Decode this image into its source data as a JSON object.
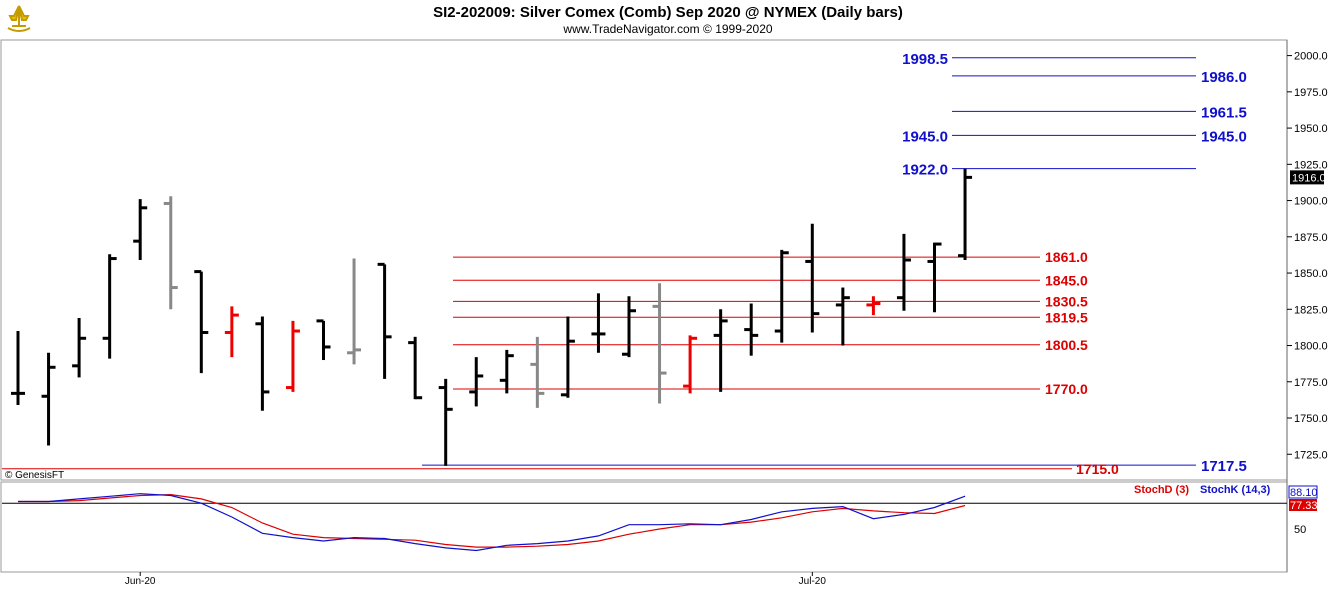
{
  "header": {
    "title": "SI2-202009:  Silver Comex (Comb) Sep 2020 @ NYMEX  (Daily bars)",
    "subtitle": "www.TradeNavigator.com © 1999-2020"
  },
  "colors": {
    "up_bar": "#000000",
    "neutral_bar": "#888888",
    "down_bar": "#ee0000",
    "blue_level": "#1010cc",
    "red_level": "#dd0000",
    "stoch_d": "#dd0000",
    "stoch_k": "#1010cc"
  },
  "chart_data": {
    "type": "ohlc",
    "price_axis": {
      "ylim": [
        1710,
        2008
      ],
      "ticks": [
        "2000.0",
        "1975.0",
        "1950.0",
        "1925.0",
        "1900.0",
        "1875.0",
        "1850.0",
        "1825.0",
        "1800.0",
        "1775.0",
        "1750.0",
        "1725.0"
      ],
      "tick_values": [
        2000,
        1975,
        1950,
        1925,
        1900,
        1875,
        1850,
        1825,
        1800,
        1775,
        1750,
        1725
      ]
    },
    "x_labels": [
      {
        "label": "Jun-20",
        "bar_index": 4
      },
      {
        "label": "Jul-20",
        "bar_index": 26
      }
    ],
    "current_price": {
      "label": "1916.0",
      "value": 1916.0
    },
    "bars": [
      {
        "o": 1767,
        "h": 1810,
        "l": 1759,
        "c": 1767,
        "color": "black"
      },
      {
        "o": 1765,
        "h": 1795,
        "l": 1731,
        "c": 1785,
        "color": "black"
      },
      {
        "o": 1786,
        "h": 1819,
        "l": 1778,
        "c": 1805,
        "color": "black"
      },
      {
        "o": 1805,
        "h": 1863,
        "l": 1791,
        "c": 1860,
        "color": "black"
      },
      {
        "o": 1872,
        "h": 1901,
        "l": 1859,
        "c": 1895,
        "color": "black"
      },
      {
        "o": 1898,
        "h": 1903,
        "l": 1825,
        "c": 1840,
        "color": "gray"
      },
      {
        "o": 1851,
        "h": 1851,
        "l": 1781,
        "c": 1809,
        "color": "black"
      },
      {
        "o": 1809,
        "h": 1827,
        "l": 1792,
        "c": 1821,
        "color": "red"
      },
      {
        "o": 1815,
        "h": 1820,
        "l": 1755,
        "c": 1768,
        "color": "black"
      },
      {
        "o": 1771,
        "h": 1817,
        "l": 1768,
        "c": 1810,
        "color": "red"
      },
      {
        "o": 1817,
        "h": 1817,
        "l": 1790,
        "c": 1799,
        "color": "black"
      },
      {
        "o": 1795,
        "h": 1860,
        "l": 1787,
        "c": 1797,
        "color": "gray"
      },
      {
        "o": 1856,
        "h": 1856,
        "l": 1777,
        "c": 1806,
        "color": "black"
      },
      {
        "o": 1802,
        "h": 1806,
        "l": 1763,
        "c": 1764,
        "color": "black"
      },
      {
        "o": 1771,
        "h": 1777,
        "l": 1717,
        "c": 1756,
        "color": "black"
      },
      {
        "o": 1768,
        "h": 1792,
        "l": 1758,
        "c": 1779,
        "color": "black"
      },
      {
        "o": 1776,
        "h": 1797,
        "l": 1767,
        "c": 1793,
        "color": "black"
      },
      {
        "o": 1787,
        "h": 1806,
        "l": 1757,
        "c": 1767,
        "color": "gray"
      },
      {
        "o": 1766,
        "h": 1820,
        "l": 1764,
        "c": 1803,
        "color": "black"
      },
      {
        "o": 1808,
        "h": 1836,
        "l": 1795,
        "c": 1808,
        "color": "black"
      },
      {
        "o": 1794,
        "h": 1834,
        "l": 1792,
        "c": 1824,
        "color": "black"
      },
      {
        "o": 1827,
        "h": 1843,
        "l": 1760,
        "c": 1781,
        "color": "gray"
      },
      {
        "o": 1772,
        "h": 1807,
        "l": 1767,
        "c": 1805,
        "color": "red"
      },
      {
        "o": 1807,
        "h": 1825,
        "l": 1768,
        "c": 1817,
        "color": "black"
      },
      {
        "o": 1811,
        "h": 1829,
        "l": 1793,
        "c": 1807,
        "color": "black"
      },
      {
        "o": 1810,
        "h": 1866,
        "l": 1802,
        "c": 1864,
        "color": "black"
      },
      {
        "o": 1858,
        "h": 1884,
        "l": 1809,
        "c": 1822,
        "color": "black"
      },
      {
        "o": 1828,
        "h": 1840,
        "l": 1800,
        "c": 1833,
        "color": "black"
      },
      {
        "o": 1828,
        "h": 1834,
        "l": 1821,
        "c": 1829,
        "color": "red"
      },
      {
        "o": 1833,
        "h": 1877,
        "l": 1824,
        "c": 1859,
        "color": "black"
      },
      {
        "o": 1858,
        "h": 1871,
        "l": 1823,
        "c": 1870,
        "color": "black"
      },
      {
        "o": 1862,
        "h": 1922,
        "l": 1859,
        "c": 1916,
        "color": "black"
      }
    ],
    "levels_blue": [
      {
        "label": "1998.5",
        "value": 1998.5,
        "side": "left"
      },
      {
        "label": "1986.0",
        "value": 1986.0,
        "side": "right"
      },
      {
        "label": "1961.5",
        "value": 1961.5,
        "side": "right"
      },
      {
        "label": "1945.0",
        "value": 1945.0,
        "side": "both"
      },
      {
        "label": "1922.0",
        "value": 1922.0,
        "side": "left"
      },
      {
        "label": "1717.5",
        "value": 1717.5,
        "side": "right"
      }
    ],
    "levels_red": [
      {
        "label": "1861.0",
        "value": 1861.0
      },
      {
        "label": "1845.0",
        "value": 1845.0
      },
      {
        "label": "1830.5",
        "value": 1830.5
      },
      {
        "label": "1819.5",
        "value": 1819.5
      },
      {
        "label": "1800.5",
        "value": 1800.5
      },
      {
        "label": "1770.0",
        "value": 1770.0
      },
      {
        "label": "1715.0",
        "value": 1715.0
      }
    ],
    "stochastic": {
      "ylim": [
        0,
        100
      ],
      "ticks": [
        "50"
      ],
      "tick_values": [
        50
      ],
      "reference_level": 80,
      "d_label": "StochD (3)",
      "k_label": "StochK (14,3)",
      "k_last": "88.10",
      "d_last": "77.33",
      "k_values": [
        82,
        82,
        85,
        88,
        91,
        89,
        80,
        64,
        45,
        40,
        36,
        40,
        39,
        33,
        28,
        25,
        31,
        33,
        36,
        42,
        55,
        55,
        56,
        55,
        61,
        70,
        74,
        76,
        62,
        67,
        75,
        88.1
      ],
      "d_values": [
        82,
        82,
        83,
        86,
        89,
        90,
        85,
        75,
        57,
        44,
        40,
        39,
        38,
        37,
        32,
        29,
        29,
        30,
        32,
        36,
        44,
        50,
        55,
        55,
        58,
        63,
        70,
        74,
        71,
        69,
        68,
        77.33
      ]
    },
    "watermark": "© GenesisFT"
  }
}
